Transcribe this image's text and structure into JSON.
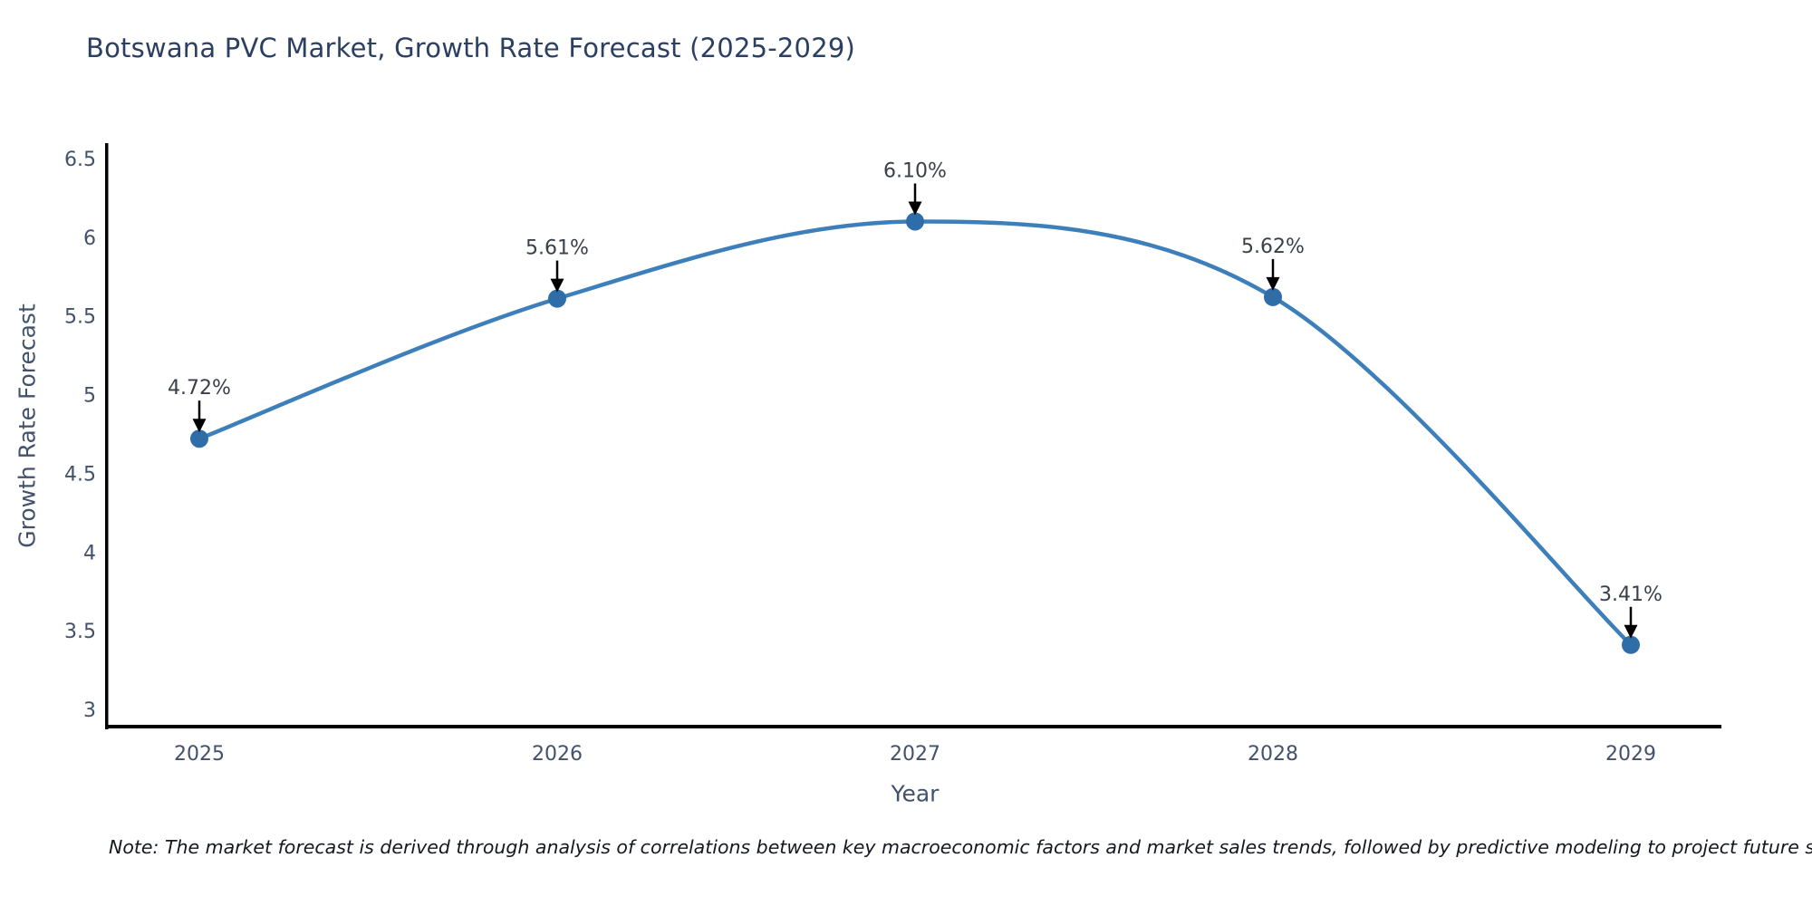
{
  "title": "Botswana PVC Market, Growth Rate Forecast (2025-2029)",
  "note": "Note: The market forecast is derived through analysis of correlations between key macroeconomic factors and market sales trends, followed by predictive modeling to project future sales trajectories.",
  "chart_data": {
    "type": "line",
    "title": "Botswana PVC Market, Growth Rate Forecast (2025-2029)",
    "xlabel": "Year",
    "ylabel": "Growth Rate Forecast",
    "x": [
      2025,
      2026,
      2027,
      2028,
      2029
    ],
    "values": [
      4.72,
      5.61,
      6.1,
      5.62,
      3.41
    ],
    "point_labels": [
      "4.72%",
      "5.61%",
      "6.10%",
      "5.62%",
      "3.41%"
    ],
    "xticks": [
      "2025",
      "2026",
      "2027",
      "2028",
      "2029"
    ],
    "yticks": [
      3,
      3.5,
      4,
      4.5,
      5,
      5.5,
      6,
      6.5
    ],
    "ylim": [
      3,
      6.5
    ],
    "grid": false,
    "legend": "none",
    "line_shape": "spline",
    "annotation_style": "text-above-with-down-arrow",
    "colors": {
      "line": "#3d7fba",
      "marker": "#2f6da8",
      "axis": "#000000",
      "arrow": "#000000",
      "title_text": "#2b3f63",
      "tick_text": "#42526b",
      "annotation_text": "#3a3f4a"
    }
  }
}
